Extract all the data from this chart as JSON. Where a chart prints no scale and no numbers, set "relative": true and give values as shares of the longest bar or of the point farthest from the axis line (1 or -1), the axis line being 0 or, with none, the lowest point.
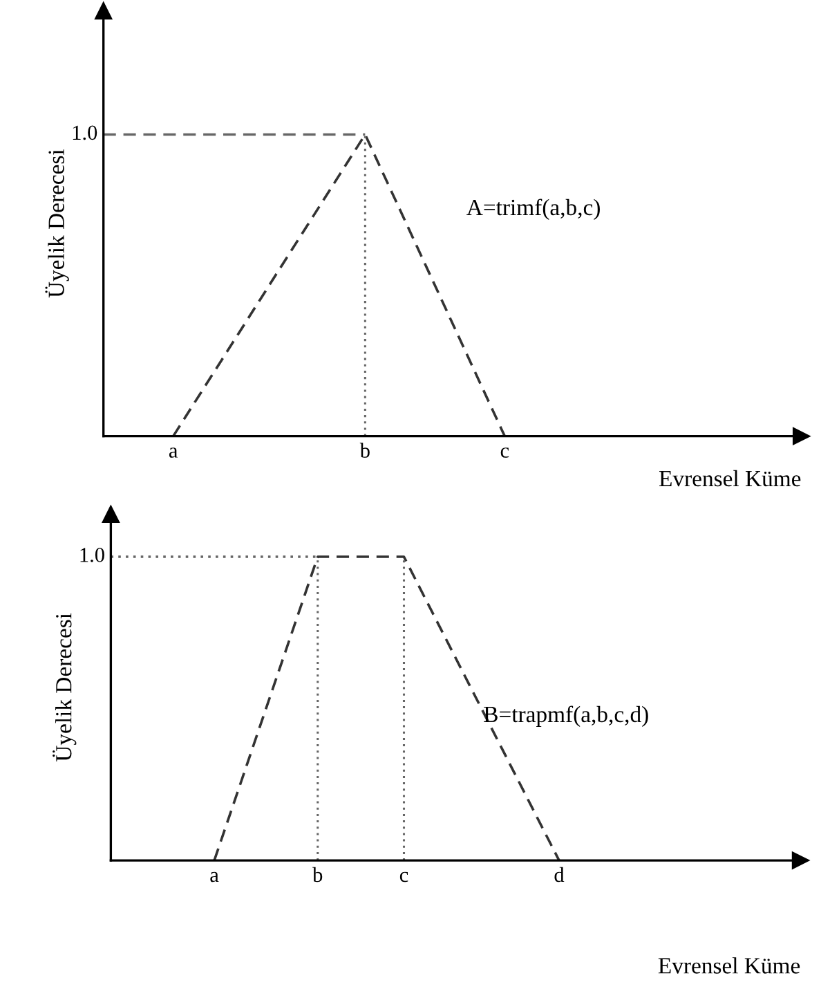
{
  "chart_data": [
    {
      "type": "line",
      "ylabel": "Üyelik Derecesi",
      "xlabel": "Evrensel Küme",
      "relative": true,
      "tick_labels": "x",
      "categories": [
        null,
        null,
        null,
        null,
        "a",
        null,
        null,
        null,
        null,
        null,
        null,
        null,
        null,
        null,
        null,
        "b",
        null,
        null,
        null,
        null,
        null,
        null,
        null,
        "c",
        null,
        null,
        null,
        null,
        null,
        null,
        null,
        null,
        null,
        null,
        null,
        null,
        null,
        null,
        null,
        null,
        null
      ],
      "series": [
        {
          "values": [
            null,
            null,
            null,
            null,
            0,
            null,
            null,
            null,
            null,
            null,
            null,
            null,
            null,
            null,
            null,
            1,
            null,
            null,
            null,
            null,
            null,
            null,
            null,
            0,
            null,
            null,
            null,
            null,
            null,
            null,
            null,
            null,
            null,
            null,
            null,
            null,
            null,
            null,
            null,
            null,
            null
          ],
          "color": "#333333",
          "line_style": "dashed"
        },
        {
          "values": [
            1,
            null,
            null,
            null,
            null,
            null,
            null,
            null,
            null,
            null,
            null,
            null,
            null,
            null,
            null,
            1,
            null,
            null,
            null,
            null,
            null,
            null,
            null,
            null,
            null,
            null,
            null,
            null,
            null,
            null,
            null,
            null,
            null,
            null,
            null,
            null,
            null,
            null,
            null,
            null,
            null
          ],
          "color": "#666666",
          "line_style": "dashed"
        }
      ],
      "ref_lines": [
        {
          "axis": "x",
          "value": "b",
          "color": "#666666",
          "line_style": "dotted"
        }
      ],
      "annotations": [
        "1.0",
        "A=trimf(a,b,c)"
      ]
    },
    {
      "type": "line",
      "ylabel": "Üyelik Derecesi",
      "xlabel": "Evrensel Küme",
      "relative": true,
      "tick_labels": "x",
      "categories": [
        null,
        null,
        null,
        null,
        null,
        null,
        "a",
        null,
        null,
        null,
        null,
        null,
        "b",
        null,
        null,
        null,
        null,
        "c",
        null,
        null,
        null,
        null,
        null,
        null,
        null,
        null,
        "d",
        null,
        null,
        null,
        null,
        null,
        null,
        null,
        null,
        null,
        null,
        null,
        null,
        null,
        null
      ],
      "series": [
        {
          "values": [
            null,
            null,
            null,
            null,
            null,
            null,
            0,
            null,
            null,
            null,
            null,
            null,
            1,
            null,
            null,
            null,
            null,
            1,
            null,
            null,
            null,
            null,
            null,
            null,
            null,
            null,
            0,
            null,
            null,
            null,
            null,
            null,
            null,
            null,
            null,
            null,
            null,
            null,
            null,
            null,
            null
          ],
          "color": "#333333",
          "line_style": "dashed"
        },
        {
          "values": [
            1,
            null,
            null,
            null,
            null,
            null,
            null,
            null,
            null,
            null,
            null,
            null,
            1,
            null,
            null,
            null,
            null,
            null,
            null,
            null,
            null,
            null,
            null,
            null,
            null,
            null,
            null,
            null,
            null,
            null,
            null,
            null,
            null,
            null,
            null,
            null,
            null,
            null,
            null,
            null,
            null
          ],
          "color": "#666666",
          "line_style": "dotted"
        }
      ],
      "ref_lines": [
        {
          "axis": "x",
          "value": "b",
          "color": "#666666",
          "line_style": "dotted"
        },
        {
          "axis": "x",
          "value": "c",
          "color": "#666666",
          "line_style": "dotted"
        }
      ],
      "annotations": [
        "1.0",
        "B=trapmf(a,b,c,d)"
      ]
    }
  ]
}
